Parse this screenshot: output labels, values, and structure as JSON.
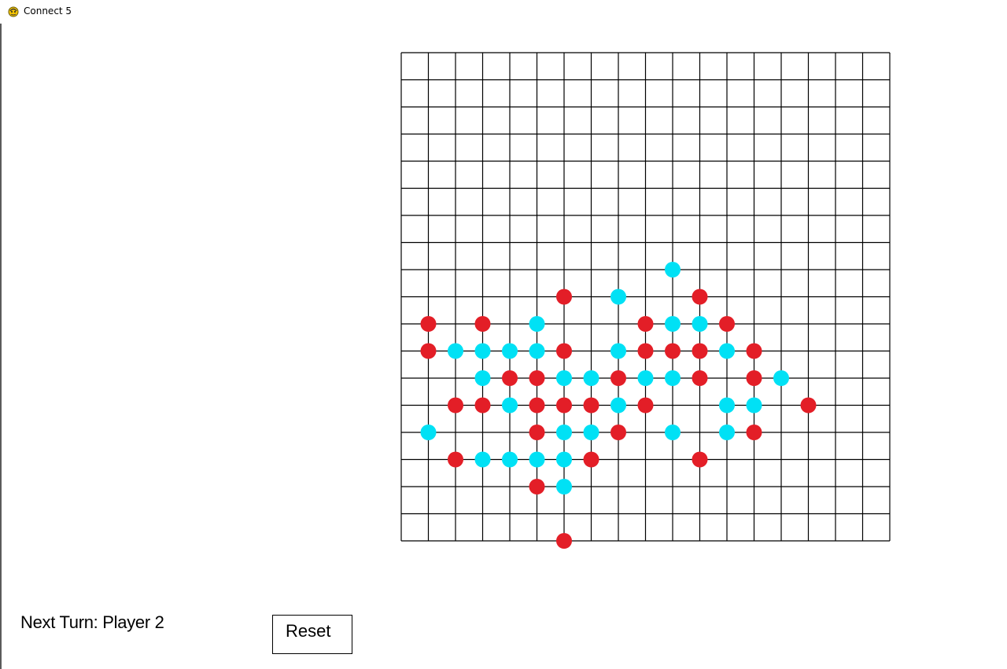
{
  "window": {
    "title": "Connect 5",
    "icon": "pygame-snake-icon"
  },
  "board": {
    "rows": 18,
    "cols": 18,
    "colors": {
      "player1": "#e31e27",
      "player2": "#00e1f5",
      "grid": "#000000"
    },
    "pieces": {
      "red": [
        [
          9,
          6
        ],
        [
          9,
          11
        ],
        [
          10,
          1
        ],
        [
          10,
          3
        ],
        [
          10,
          9
        ],
        [
          10,
          12
        ],
        [
          11,
          1
        ],
        [
          11,
          6
        ],
        [
          11,
          9
        ],
        [
          11,
          10
        ],
        [
          11,
          11
        ],
        [
          11,
          13
        ],
        [
          12,
          4
        ],
        [
          12,
          5
        ],
        [
          12,
          8
        ],
        [
          12,
          11
        ],
        [
          12,
          13
        ],
        [
          13,
          2
        ],
        [
          13,
          3
        ],
        [
          13,
          5
        ],
        [
          13,
          6
        ],
        [
          13,
          7
        ],
        [
          13,
          9
        ],
        [
          13,
          15
        ],
        [
          14,
          5
        ],
        [
          14,
          8
        ],
        [
          14,
          13
        ],
        [
          15,
          2
        ],
        [
          15,
          7
        ],
        [
          15,
          11
        ],
        [
          16,
          5
        ],
        [
          18,
          6
        ]
      ],
      "cyan": [
        [
          8,
          10
        ],
        [
          9,
          8
        ],
        [
          10,
          5
        ],
        [
          10,
          10
        ],
        [
          10,
          11
        ],
        [
          11,
          2
        ],
        [
          11,
          3
        ],
        [
          11,
          4
        ],
        [
          11,
          5
        ],
        [
          11,
          8
        ],
        [
          11,
          12
        ],
        [
          12,
          3
        ],
        [
          12,
          6
        ],
        [
          12,
          7
        ],
        [
          12,
          9
        ],
        [
          12,
          10
        ],
        [
          12,
          14
        ],
        [
          13,
          4
        ],
        [
          13,
          8
        ],
        [
          13,
          12
        ],
        [
          13,
          13
        ],
        [
          14,
          1
        ],
        [
          14,
          6
        ],
        [
          14,
          7
        ],
        [
          14,
          10
        ],
        [
          14,
          12
        ],
        [
          15,
          3
        ],
        [
          15,
          4
        ],
        [
          15,
          5
        ],
        [
          15,
          6
        ],
        [
          16,
          6
        ]
      ]
    }
  },
  "status": {
    "next_turn": "Next Turn: Player 2"
  },
  "reset_button": {
    "label": "Reset"
  }
}
